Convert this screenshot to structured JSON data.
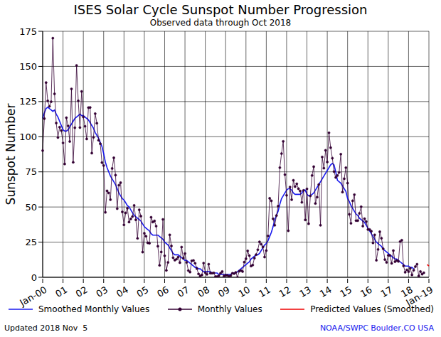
{
  "chart_data": {
    "type": "line",
    "title": "ISES Solar Cycle Sunspot Number Progression",
    "subtitle": "Observed data through Oct 2018",
    "y_label": "Sunspot Number",
    "annotations": [
      "Updated 2018 Nov  5",
      "NOAA/SWPC Boulder,CO USA"
    ],
    "categories": [
      "Jan-00",
      null,
      null,
      null,
      null,
      null,
      null,
      null,
      null,
      null,
      null,
      null,
      "01",
      null,
      null,
      null,
      null,
      null,
      null,
      null,
      null,
      null,
      null,
      null,
      "02",
      null,
      null,
      null,
      null,
      null,
      null,
      null,
      null,
      null,
      null,
      null,
      "03",
      null,
      null,
      null,
      null,
      null,
      null,
      null,
      null,
      null,
      null,
      null,
      "04",
      null,
      null,
      null,
      null,
      null,
      null,
      null,
      null,
      null,
      null,
      null,
      "05",
      null,
      null,
      null,
      null,
      null,
      null,
      null,
      null,
      null,
      null,
      null,
      "06",
      null,
      null,
      null,
      null,
      null,
      null,
      null,
      null,
      null,
      null,
      null,
      "07",
      null,
      null,
      null,
      null,
      null,
      null,
      null,
      null,
      null,
      null,
      null,
      "08",
      null,
      null,
      null,
      null,
      null,
      null,
      null,
      null,
      null,
      null,
      null,
      "09",
      null,
      null,
      null,
      null,
      null,
      null,
      null,
      null,
      null,
      null,
      null,
      "10",
      null,
      null,
      null,
      null,
      null,
      null,
      null,
      null,
      null,
      null,
      null,
      "11",
      null,
      null,
      null,
      null,
      null,
      null,
      null,
      null,
      null,
      null,
      null,
      "12",
      null,
      null,
      null,
      null,
      null,
      null,
      null,
      null,
      null,
      null,
      null,
      "13",
      null,
      null,
      null,
      null,
      null,
      null,
      null,
      null,
      null,
      null,
      null,
      "14",
      null,
      null,
      null,
      null,
      null,
      null,
      null,
      null,
      null,
      null,
      null,
      "15",
      null,
      null,
      null,
      null,
      null,
      null,
      null,
      null,
      null,
      null,
      null,
      "16",
      null,
      null,
      null,
      null,
      null,
      null,
      null,
      null,
      null,
      null,
      null,
      "17",
      null,
      null,
      null,
      null,
      null,
      null,
      null,
      null,
      null,
      null,
      null,
      "18",
      null,
      null,
      null,
      null,
      null,
      null,
      null,
      null,
      null,
      null,
      null,
      "Jan-19"
    ],
    "series": [
      {
        "name": "Smoothed Monthly Values",
        "color": "#1a1aee",
        "marker": "none",
        "line_style": "solid",
        "values": [
          113,
          117,
          120,
          121,
          120,
          119,
          118,
          119,
          116,
          114,
          111,
          108,
          105,
          104,
          104,
          105,
          107,
          109,
          111,
          113,
          114,
          115,
          116,
          115,
          115,
          114,
          113,
          112,
          110,
          108,
          106,
          103,
          101,
          99,
          96,
          93,
          88,
          82,
          78,
          75,
          72,
          70,
          68,
          66,
          63,
          60,
          58,
          56,
          55,
          53,
          51,
          50,
          48,
          46,
          44,
          43,
          42,
          41,
          40,
          38,
          36,
          35,
          34,
          33,
          31,
          30,
          30,
          30,
          30,
          29,
          28,
          27,
          25,
          24,
          23,
          21,
          19,
          17,
          16,
          16,
          16,
          15,
          14,
          13,
          12,
          12,
          11,
          10,
          9,
          8,
          7,
          7,
          6,
          6,
          5,
          4,
          4,
          4,
          4,
          4,
          3,
          3,
          3,
          3,
          2,
          2,
          2,
          2,
          2,
          2,
          2,
          2,
          3,
          3,
          3,
          4,
          5,
          6,
          7,
          8,
          9,
          10,
          11,
          13,
          14,
          15,
          16,
          16,
          17,
          19,
          21,
          23,
          24,
          26,
          29,
          32,
          36,
          41,
          44,
          47,
          52,
          56,
          58,
          60,
          62,
          63,
          63,
          62,
          60,
          59,
          59,
          59,
          59,
          60,
          62,
          62,
          59,
          58,
          58,
          59,
          60,
          62,
          64,
          66,
          68,
          70,
          72,
          74,
          76,
          78,
          80,
          81,
          80,
          75,
          69,
          68,
          67,
          65,
          63,
          61,
          56,
          54,
          51,
          49,
          47,
          45,
          44,
          42,
          41,
          40,
          39,
          37,
          35,
          33,
          31,
          29,
          27,
          25,
          24,
          23,
          22,
          20,
          19,
          18,
          17,
          16,
          15,
          14,
          13,
          13,
          12,
          11,
          10,
          9,
          8,
          8,
          8,
          7,
          7,
          6,
          null,
          null,
          null,
          null,
          null,
          null,
          null,
          null,
          null
        ]
      },
      {
        "name": "Monthly Values",
        "color": "#330033",
        "marker": "circle",
        "line_style": "solid",
        "values": [
          90.1,
          112.9,
          138.5,
          125.5,
          121.6,
          124.9,
          170.1,
          130.5,
          109.7,
          99.4,
          106.8,
          104.4,
          95.6,
          80.6,
          113.5,
          107.7,
          96.6,
          134.0,
          81.8,
          106.4,
          150.7,
          125.5,
          106.5,
          132.2,
          114.1,
          107.4,
          98.4,
          120.7,
          120.8,
          88.3,
          99.6,
          116.4,
          109.6,
          97.5,
          95.0,
          81.6,
          79.5,
          46.2,
          61.5,
          60.0,
          55.2,
          77.4,
          85.0,
          72.7,
          48.8,
          65.5,
          67.3,
          46.5,
          37.3,
          45.8,
          49.1,
          39.3,
          41.5,
          43.2,
          51.1,
          40.9,
          27.7,
          48.0,
          43.5,
          17.9,
          31.3,
          29.2,
          24.5,
          24.2,
          42.7,
          39.3,
          40.1,
          36.4,
          22.1,
          8.5,
          18.0,
          41.2,
          15.3,
          4.9,
          10.6,
          30.2,
          22.3,
          13.9,
          12.2,
          12.9,
          14.4,
          10.4,
          21.5,
          13.6,
          16.9,
          10.6,
          4.8,
          3.7,
          11.7,
          12.0,
          10.0,
          6.2,
          2.4,
          0.9,
          1.7,
          10.1,
          3.3,
          2.1,
          9.3,
          2.9,
          2.9,
          3.1,
          0.5,
          0.5,
          1.1,
          2.9,
          4.1,
          0.8,
          1.5,
          1.4,
          0.7,
          1.2,
          2.9,
          2.6,
          3.5,
          0.0,
          4.3,
          4.8,
          4.1,
          10.8,
          13.2,
          18.8,
          15.4,
          8.0,
          8.7,
          13.6,
          16.1,
          19.6,
          25.2,
          23.5,
          21.6,
          14.4,
          19.0,
          29.4,
          56.2,
          54.4,
          41.6,
          37.0,
          43.9,
          50.6,
          78.0,
          88.0,
          96.7,
          73.0,
          58.3,
          33.1,
          64.2,
          55.2,
          69.0,
          64.5,
          66.5,
          63.0,
          61.4,
          53.3,
          61.8,
          40.8,
          62.9,
          38.1,
          57.9,
          72.4,
          78.7,
          52.5,
          57.0,
          66.0,
          37.0,
          85.6,
          77.6,
          90.3,
          82.0,
          102.8,
          92.2,
          84.7,
          75.2,
          71.0,
          72.4,
          74.6,
          87.6,
          60.6,
          70.1,
          78.0,
          67.0,
          44.8,
          38.4,
          54.4,
          58.8,
          40.3,
          40.3,
          45.5,
          50.2,
          36.4,
          41.7,
          39.6,
          34.0,
          34.0,
          32.8,
          24.4,
          30.2,
          12.1,
          19.8,
          32.4,
          27.8,
          20.3,
          12.6,
          10.6,
          15.6,
          15.5,
          9.9,
          19.0,
          11.1,
          11.9,
          11.3,
          25.4,
          26.4,
          8.1,
          3.6,
          5.3,
          4.0,
          6.4,
          1.7,
          5.0,
          7.6,
          9.3,
          0.9,
          4.1,
          2.2,
          3.2,
          null,
          null,
          null
        ]
      },
      {
        "name": "Predicted Values (Smoothed)",
        "color": "#ee0000",
        "marker": "none",
        "line_style": "solid",
        "values": [
          null,
          null,
          null,
          null,
          null,
          null,
          null,
          null,
          null,
          null,
          null,
          null,
          null,
          null,
          null,
          null,
          null,
          null,
          null,
          null,
          null,
          null,
          null,
          null,
          null,
          null,
          null,
          null,
          null,
          null,
          null,
          null,
          null,
          null,
          null,
          null,
          null,
          null,
          null,
          null,
          null,
          null,
          null,
          null,
          null,
          null,
          null,
          null,
          null,
          null,
          null,
          null,
          null,
          null,
          null,
          null,
          null,
          null,
          null,
          null,
          null,
          null,
          null,
          null,
          null,
          null,
          null,
          null,
          null,
          null,
          null,
          null,
          null,
          null,
          null,
          null,
          null,
          null,
          null,
          null,
          null,
          null,
          null,
          null,
          null,
          null,
          null,
          null,
          null,
          null,
          null,
          null,
          null,
          null,
          null,
          null,
          null,
          null,
          null,
          null,
          null,
          null,
          null,
          null,
          null,
          null,
          null,
          null,
          null,
          null,
          null,
          null,
          null,
          null,
          null,
          null,
          null,
          null,
          null,
          null,
          null,
          null,
          null,
          null,
          null,
          null,
          null,
          null,
          null,
          null,
          null,
          null,
          null,
          null,
          null,
          null,
          null,
          null,
          null,
          null,
          null,
          null,
          null,
          null,
          null,
          null,
          null,
          null,
          null,
          null,
          null,
          null,
          null,
          null,
          null,
          null,
          null,
          null,
          null,
          null,
          null,
          null,
          null,
          null,
          null,
          null,
          null,
          null,
          null,
          null,
          null,
          null,
          null,
          null,
          null,
          null,
          null,
          null,
          null,
          null,
          null,
          null,
          null,
          null,
          null,
          null,
          null,
          null,
          null,
          null,
          null,
          null,
          null,
          null,
          null,
          null,
          null,
          null,
          null,
          null,
          null,
          null,
          null,
          null,
          null,
          null,
          null,
          null,
          null,
          null,
          null,
          null,
          null,
          null,
          null,
          null,
          null,
          null,
          null,
          null,
          null,
          null,
          null,
          null,
          null,
          null,
          null,
          9,
          8
        ]
      }
    ],
    "ylim": [
      0,
      175
    ],
    "yticks": [
      0,
      25,
      50,
      75,
      100,
      125,
      150,
      175
    ],
    "grid": true,
    "legend": "bottom"
  }
}
